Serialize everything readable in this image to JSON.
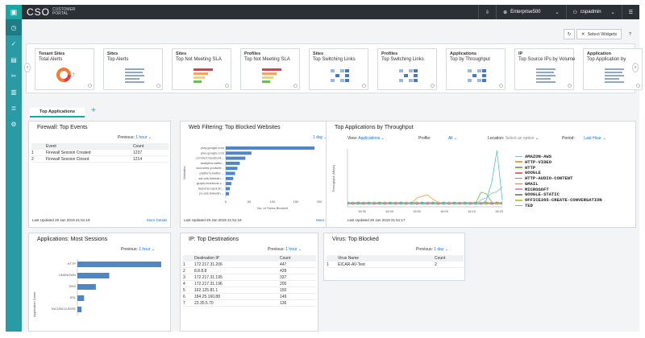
{
  "topbar": {
    "brand": "CSO",
    "brand_sub": "CUSTOMER PORTAL",
    "tenant": "Enterprise500",
    "user": "cspadmin"
  },
  "toolbar": {
    "select_widgets": "Select Widgets"
  },
  "cards": [
    {
      "t1": "Tenant Sites",
      "t2": "Total Alerts",
      "viz": "donut"
    },
    {
      "t1": "Sites",
      "t2": "Top Alerts",
      "viz": "lines"
    },
    {
      "t1": "Sites",
      "t2": "Top Not Meeting SLA",
      "viz": "bars-color"
    },
    {
      "t1": "Profiles",
      "t2": "Top Not Meeting SLA",
      "viz": "bars-color"
    },
    {
      "t1": "Sites",
      "t2": "Top Switching Links",
      "viz": "blocks"
    },
    {
      "t1": "Profiles",
      "t2": "Top Switching Links",
      "viz": "blocks"
    },
    {
      "t1": "Applications",
      "t2": "Top by Throughput",
      "viz": "blocks"
    },
    {
      "t1": "IP",
      "t2": "Top Source IPs by Volume",
      "viz": "lines"
    },
    {
      "t1": "Application",
      "t2": "Top Application by",
      "viz": "lines"
    }
  ],
  "tabs": {
    "active": "Top Applications",
    "add": "+"
  },
  "firewall": {
    "title": "Firewall: Top Events",
    "previous_label": "Previous:",
    "previous_value": "1 hour",
    "columns": [
      "Event",
      "Count"
    ],
    "rows": [
      [
        "1",
        "Firewall Session Created",
        "1237"
      ],
      [
        "2",
        "Firewall Session Closed",
        "1214"
      ]
    ],
    "updated": "Last Updated 29 Jan 2019 21:51:19",
    "more": "More Details"
  },
  "webfilter": {
    "title": "Web Filtering: Top Blocked Websites",
    "previous_value": "1 day",
    "ylabel": "Websites",
    "xlabel": "No. of Times Blocked",
    "categories": [
      "play.google.com",
      "plus.google.com",
      "connect.facebook...",
      "analytics.twitte...",
      "accounts.youtube...",
      "platform.twitter....",
      "ssl.ads.linkedin....",
      "graph.facebook.c...",
      "launcher.spot.lin...",
      "px.ads.linkedin...."
    ],
    "values": [
      190,
      55,
      42,
      30,
      25,
      20,
      16,
      12,
      9,
      7
    ],
    "xticks": [
      "0",
      "50",
      "100",
      "150",
      "200"
    ],
    "updated": "Last Updated 29 Jan 2019 21:51:19",
    "more": "More Details"
  },
  "throughput": {
    "title": "Top Applications by Throughput",
    "view_label": "View:",
    "view_value": "Applications",
    "profile_label": "Profile:",
    "profile_value": "All",
    "location_label": "Location:",
    "location_value": "Select an option",
    "period_label": "Period:",
    "period_value": "Last Hour",
    "ylabel": "Throughput (Mbps)",
    "xticks": [
      "15:30",
      "15:40",
      "15:50",
      "16:00",
      "16:10",
      "16:20"
    ],
    "updated": "Last Updated 29 Jan 2019 21:51:17",
    "series": [
      {
        "name": "AMAZON-AWS",
        "color": "#8fb3d9"
      },
      {
        "name": "HTTP-VIDEO",
        "color": "#e6a43a"
      },
      {
        "name": "HTTP",
        "color": "#76b947"
      },
      {
        "name": "GOOGLE",
        "color": "#e06b6b"
      },
      {
        "name": "HTTP-AUDIO-CONTENT",
        "color": "#9a7ad1"
      },
      {
        "name": "GMAIL",
        "color": "#b08b62"
      },
      {
        "name": "MICROSOFT",
        "color": "#e58fc8"
      },
      {
        "name": "GOOGLE-STATIC",
        "color": "#8c8c8c"
      },
      {
        "name": "OFFICE365-CREATE-CONVERSATION",
        "color": "#c7c94a"
      },
      {
        "name": "TED",
        "color": "#4fc3c9"
      }
    ]
  },
  "sessions": {
    "title": "Applications: Most Sessions",
    "previous_value": "1 hour",
    "ylabel": "Application Name",
    "categories": [
      "HTTP",
      "UNKNOWN",
      "DNS",
      "SSL",
      "INCONCLUSIVE"
    ],
    "values": [
      100,
      38,
      22,
      8,
      5
    ]
  },
  "ipdest": {
    "title": "IP: Top Destinations",
    "previous_value": "1 hour",
    "columns": [
      "Destination IP",
      "Count"
    ],
    "rows": [
      [
        "1",
        "172.217.31.206",
        "447"
      ],
      [
        "2",
        "8.8.8.8",
        "428"
      ],
      [
        "3",
        "172.217.31.195",
        "337"
      ],
      [
        "4",
        "172.217.31.196",
        "205"
      ],
      [
        "5",
        "162.125.81.1",
        "150"
      ],
      [
        "6",
        "184.25.160.88",
        "149"
      ],
      [
        "7",
        "23.35.5.70",
        "136"
      ]
    ]
  },
  "virus": {
    "title": "Virus: Top Blocked",
    "previous_value": "1 day",
    "columns": [
      "Virus Name",
      "Count"
    ],
    "rows": [
      [
        "1",
        "EICAR-AV-Test",
        "2"
      ]
    ]
  }
}
